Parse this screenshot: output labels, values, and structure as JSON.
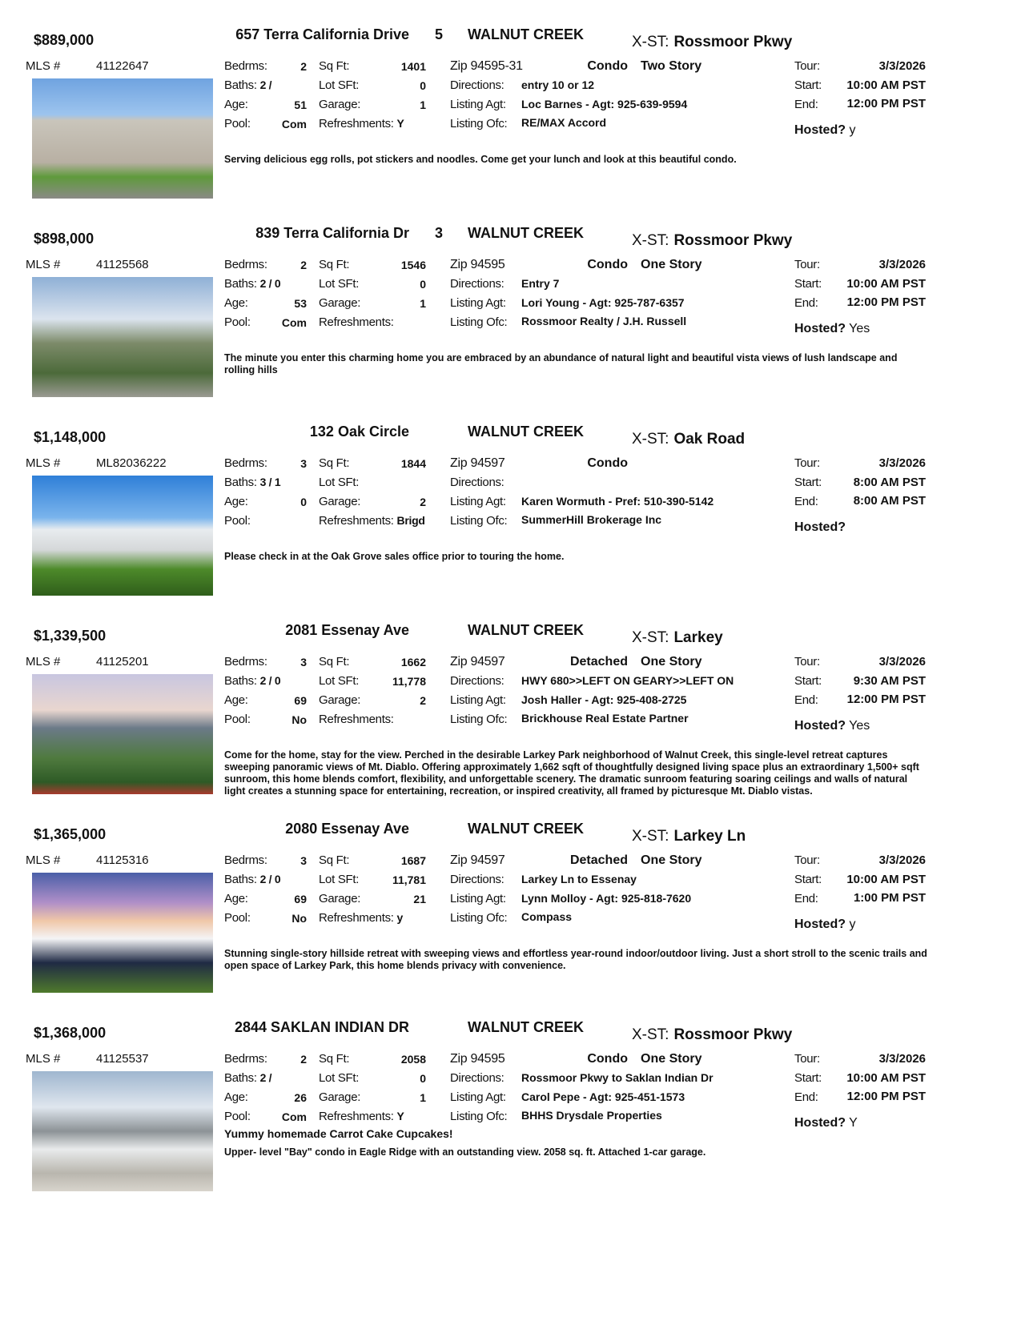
{
  "labels": {
    "mls": "MLS #",
    "bedrms": "Bedrms:",
    "sqft": "Sq Ft:",
    "baths": "Baths:",
    "lotsft": "Lot SFt:",
    "age": "Age:",
    "garage": "Garage:",
    "pool": "Pool:",
    "refreshments": "Refreshments:",
    "zip": "Zip",
    "directions": "Directions:",
    "agent": "Listing Agt:",
    "office": "Listing Ofc:",
    "tour": "Tour:",
    "start": "Start:",
    "end": "End:",
    "hosted": "Hosted?",
    "xst": "X-ST:"
  },
  "listings": [
    {
      "price": "$889,000",
      "mls": "41122647",
      "address": "657 Terra California Drive",
      "num": "5",
      "city": "WALNUT CREEK",
      "xst": "Rossmoor Pkwy",
      "bedrms": "2",
      "sqft": "1401",
      "baths": "2 /",
      "lotsft": "0",
      "age": "51",
      "garage": "1",
      "pool": "Com",
      "refreshments": "Y",
      "zip": "94595-31",
      "type": "Condo",
      "style": "Two Story",
      "directions": "entry 10 or 12",
      "agent": "Loc Barnes - Agt: 925-639-9594",
      "office": "RE/MAX Accord",
      "tour": "3/3/2026",
      "start": "10:00 AM PST",
      "end": "12:00 PM PST",
      "hosted": "y",
      "note": "",
      "description": "Serving delicious egg rolls, pot stickers and noodles. Come get your lunch and look at this beautiful condo."
    },
    {
      "price": "$898,000",
      "mls": "41125568",
      "address": "839 Terra California Dr",
      "num": "3",
      "city": "WALNUT CREEK",
      "xst": "Rossmoor Pkwy",
      "bedrms": "2",
      "sqft": "1546",
      "baths": "2 / 0",
      "lotsft": "0",
      "age": "53",
      "garage": "1",
      "pool": "Com",
      "refreshments": "",
      "zip": "94595",
      "type": "Condo",
      "style": "One Story",
      "directions": "Entry 7",
      "agent": "Lori Young - Agt: 925-787-6357",
      "office": "Rossmoor Realty / J.H. Russell",
      "tour": "3/3/2026",
      "start": "10:00 AM PST",
      "end": "12:00 PM PST",
      "hosted": "Yes",
      "note": "",
      "description": "The minute you enter this charming home you are embraced by an abundance of natural light and beautiful vista views of lush landscape and rolling hills"
    },
    {
      "price": "$1,148,000",
      "mls": "ML82036222",
      "address": "132 Oak Circle",
      "num": "",
      "city": "WALNUT CREEK",
      "xst": "Oak Road",
      "bedrms": "3",
      "sqft": "1844",
      "baths": "3 / 1",
      "lotsft": "",
      "age": "0",
      "garage": "2",
      "pool": "",
      "refreshments": "Brigd",
      "zip": "94597",
      "type": "Condo",
      "style": "",
      "directions": "",
      "agent": "Karen Wormuth - Pref: 510-390-5142",
      "office": "SummerHill Brokerage Inc",
      "tour": "3/3/2026",
      "start": "8:00 AM PST",
      "end": "8:00 AM PST",
      "hosted": "",
      "note": "",
      "description": "Please check in at the Oak Grove sales office prior to touring the home."
    },
    {
      "price": "$1,339,500",
      "mls": "41125201",
      "address": "2081 Essenay Ave",
      "num": "",
      "city": "WALNUT CREEK",
      "xst": "Larkey",
      "bedrms": "3",
      "sqft": "1662",
      "baths": "2 / 0",
      "lotsft": "11,778",
      "age": "69",
      "garage": "2",
      "pool": "No",
      "refreshments": "",
      "zip": "94597",
      "type": "Detached",
      "style": "One Story",
      "directions": "HWY 680>>LEFT ON GEARY>>LEFT ON",
      "agent": "Josh Haller - Agt: 925-408-2725",
      "office": "Brickhouse Real Estate Partner",
      "tour": "3/3/2026",
      "start": "9:30 AM PST",
      "end": "12:00 PM PST",
      "hosted": "Yes",
      "note": "",
      "description": "Come for the home, stay for the view. Perched in the desirable Larkey Park neighborhood of Walnut Creek, this single-level retreat captures sweeping panoramic views of Mt. Diablo. Offering approximately 1,662 sqft of thoughtfully designed living space plus an extraordinary 1,500+ sqft sunroom, this home blends comfort, flexibility, and unforgettable scenery. The dramatic sunroom featuring soaring ceilings and walls of natural light creates a stunning space for entertaining, recreation, or inspired creativity, all framed by picturesque Mt. Diablo vistas."
    },
    {
      "price": "$1,365,000",
      "mls": "41125316",
      "address": "2080 Essenay Ave",
      "num": "",
      "city": "WALNUT CREEK",
      "xst": "Larkey Ln",
      "bedrms": "3",
      "sqft": "1687",
      "baths": "2 / 0",
      "lotsft": "11,781",
      "age": "69",
      "garage": "21",
      "pool": "No",
      "refreshments": "y",
      "zip": "94597",
      "type": "Detached",
      "style": "One Story",
      "directions": "Larkey Ln to Essenay",
      "agent": "Lynn Molloy - Agt: 925-818-7620",
      "office": "Compass",
      "tour": "3/3/2026",
      "start": "10:00 AM PST",
      "end": "1:00 PM PST",
      "hosted": "y",
      "note": "",
      "description": "Stunning single-story hillside retreat with sweeping views and effortless year-round indoor/outdoor living. Just a short stroll to the scenic trails and open space of Larkey Park, this home blends privacy with convenience."
    },
    {
      "price": "$1,368,000",
      "mls": "41125537",
      "address": "2844 SAKLAN INDIAN DR",
      "num": "",
      "city": "WALNUT CREEK",
      "xst": "Rossmoor Pkwy",
      "bedrms": "2",
      "sqft": "2058",
      "baths": "2 /",
      "lotsft": "0",
      "age": "26",
      "garage": "1",
      "pool": "Com",
      "refreshments": "Y",
      "zip": "94595",
      "type": "Condo",
      "style": "One Story",
      "directions": "Rossmoor Pkwy to Saklan Indian Dr",
      "agent": "Carol Pepe - Agt: 925-451-1573",
      "office": "BHHS Drysdale Properties",
      "tour": "3/3/2026",
      "start": "10:00 AM PST",
      "end": "12:00 PM PST",
      "hosted": "Y",
      "note": "Yummy homemade Carrot Cake Cupcakes!",
      "description": "Upper- level \"Bay\" condo in Eagle Ridge with an outstanding view. 2058 sq. ft. Attached 1-car garage."
    }
  ]
}
